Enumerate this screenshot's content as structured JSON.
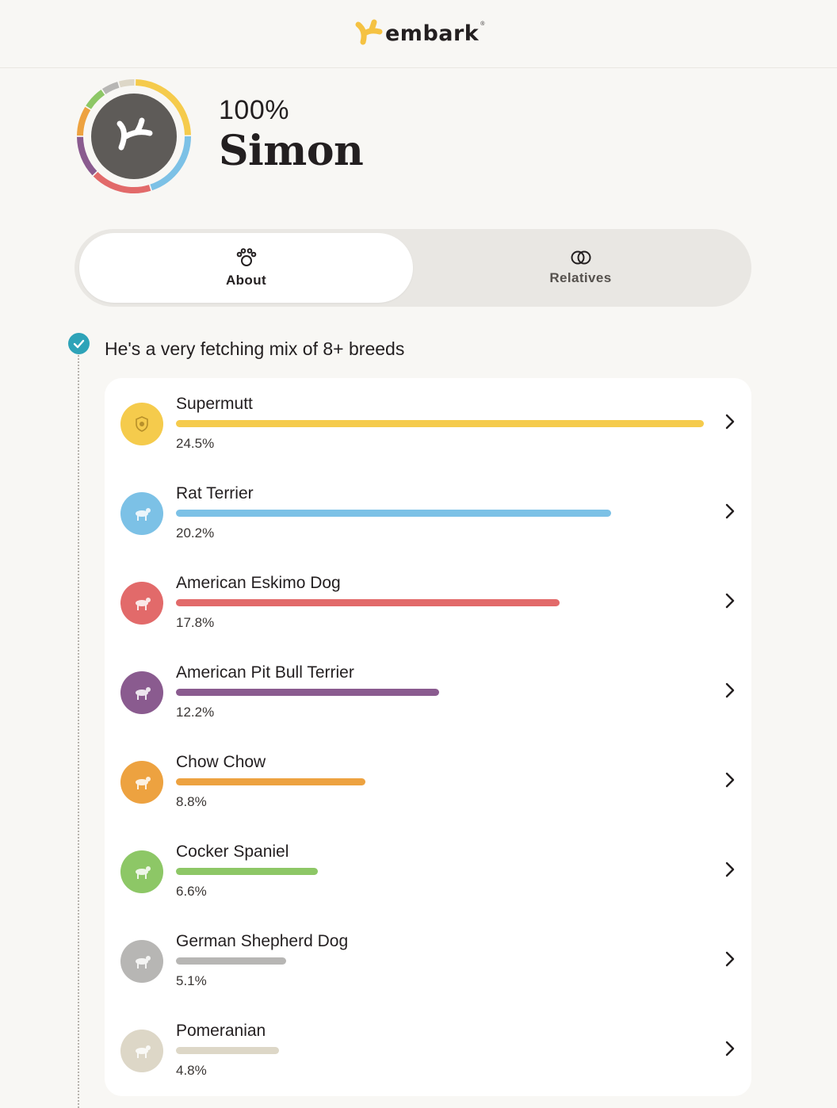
{
  "header": {
    "logo_text": "embark",
    "logo_mark": "®",
    "brand_color": "#f5c242"
  },
  "profile": {
    "percent": "100%",
    "name": "Simon",
    "avatar_bg": "#5e5b58"
  },
  "tabs": [
    {
      "label": "About",
      "icon": "paw-icon",
      "active": true
    },
    {
      "label": "Relatives",
      "icon": "rings-icon",
      "active": false
    }
  ],
  "headline": "He's a very fetching mix of 8+ breeds",
  "breeds": [
    {
      "name": "Supermutt",
      "percent_label": "24.5%",
      "fraction": 0.245,
      "color": "#f5cb4c",
      "icon": "supermutt-badge-icon"
    },
    {
      "name": "Rat Terrier",
      "percent_label": "20.2%",
      "fraction": 0.202,
      "color": "#7cc1e6",
      "icon": "rat-terrier-dog-icon"
    },
    {
      "name": "American Eskimo Dog",
      "percent_label": "17.8%",
      "fraction": 0.178,
      "color": "#e26a6a",
      "icon": "american-eskimo-dog-icon"
    },
    {
      "name": "American Pit Bull Terrier",
      "percent_label": "12.2%",
      "fraction": 0.122,
      "color": "#8a5b8f",
      "icon": "pit-bull-dog-icon"
    },
    {
      "name": "Chow Chow",
      "percent_label": "8.8%",
      "fraction": 0.088,
      "color": "#eda240",
      "icon": "chow-chow-dog-icon"
    },
    {
      "name": "Cocker Spaniel",
      "percent_label": "6.6%",
      "fraction": 0.066,
      "color": "#8dc766",
      "icon": "cocker-spaniel-dog-icon"
    },
    {
      "name": "German Shepherd Dog",
      "percent_label": "5.1%",
      "fraction": 0.051,
      "color": "#b7b6b4",
      "icon": "german-shepherd-dog-icon"
    },
    {
      "name": "Pomeranian",
      "percent_label": "4.8%",
      "fraction": 0.048,
      "color": "#ddd7c7",
      "icon": "pomeranian-dog-icon"
    }
  ]
}
